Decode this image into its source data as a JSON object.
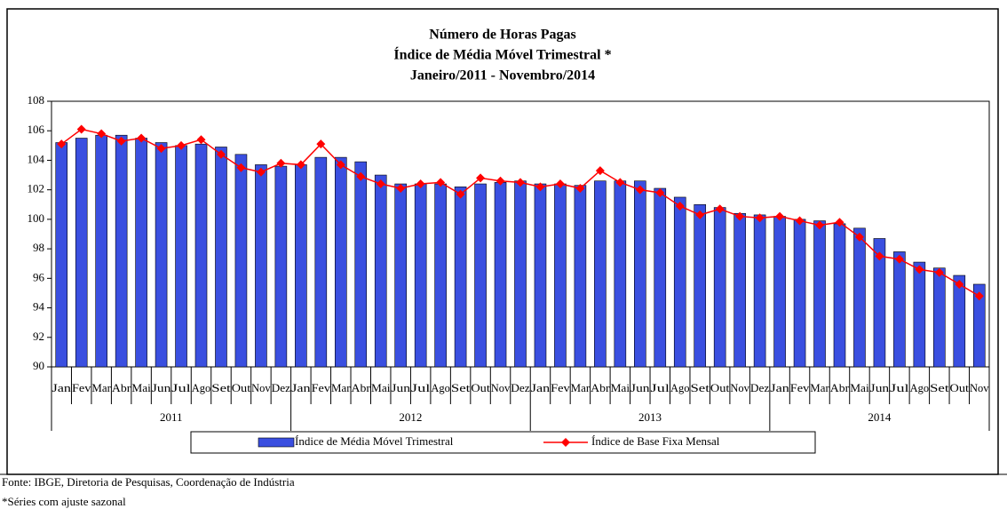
{
  "chart_data": {
    "type": "bar-line",
    "title": [
      "Número de Horas Pagas",
      "Índice de Média Móvel Trimestral *",
      "Janeiro/2011 - Novembro/2014"
    ],
    "categories": [
      "Jan",
      "Fev",
      "Mar",
      "Abr",
      "Mai",
      "Jun",
      "Jul",
      "Ago",
      "Set",
      "Out",
      "Nov",
      "Dez",
      "Jan",
      "Fev",
      "Mar",
      "Abr",
      "Mai",
      "Jun",
      "Jul",
      "Ago",
      "Set",
      "Out",
      "Nov",
      "Dez",
      "Jan",
      "Fev",
      "Mar",
      "Abr",
      "Mai",
      "Jun",
      "Jul",
      "Ago",
      "Set",
      "Out",
      "Nov",
      "Dez",
      "Jan",
      "Fev",
      "Mar",
      "Abr",
      "Mai",
      "Jun",
      "Jul",
      "Ago",
      "Set",
      "Out",
      "Nov"
    ],
    "years": [
      "2011",
      "2012",
      "2013",
      "2014"
    ],
    "series": [
      {
        "name": "Índice de Média Móvel Trimestral",
        "kind": "bar",
        "color": "#3a4fe0",
        "values": [
          105.2,
          105.5,
          105.7,
          105.7,
          105.5,
          105.2,
          105.0,
          105.1,
          104.9,
          104.4,
          103.7,
          103.6,
          103.7,
          104.2,
          104.2,
          103.9,
          103.0,
          102.4,
          102.4,
          102.4,
          102.2,
          102.4,
          102.5,
          102.6,
          102.4,
          102.4,
          102.3,
          102.6,
          102.6,
          102.6,
          102.1,
          101.5,
          101.0,
          100.8,
          100.4,
          100.3,
          100.2,
          100.0,
          99.9,
          99.7,
          99.4,
          98.7,
          97.8,
          97.1,
          96.7,
          96.2,
          95.6
        ]
      },
      {
        "name": "Índice de Base Fixa Mensal",
        "kind": "line",
        "color": "#ff0000",
        "values": [
          105.1,
          106.1,
          105.8,
          105.3,
          105.5,
          104.8,
          105.0,
          105.4,
          104.4,
          103.5,
          103.2,
          103.8,
          103.7,
          105.1,
          103.7,
          102.9,
          102.4,
          102.1,
          102.4,
          102.5,
          101.7,
          102.8,
          102.6,
          102.5,
          102.2,
          102.4,
          102.1,
          103.3,
          102.5,
          102.0,
          101.8,
          100.9,
          100.3,
          100.7,
          100.2,
          100.1,
          100.2,
          99.9,
          99.6,
          99.8,
          98.8,
          97.5,
          97.3,
          96.6,
          96.4,
          95.6,
          94.8
        ]
      }
    ],
    "ylim": [
      90,
      108
    ],
    "yticks": [
      90,
      92,
      94,
      96,
      98,
      100,
      102,
      104,
      106,
      108
    ],
    "legend": "bottom",
    "notes": [
      "Fonte: IBGE, Diretoria de Pesquisas, Coordenação de Indústria",
      "*Séries com ajuste sazonal"
    ]
  }
}
